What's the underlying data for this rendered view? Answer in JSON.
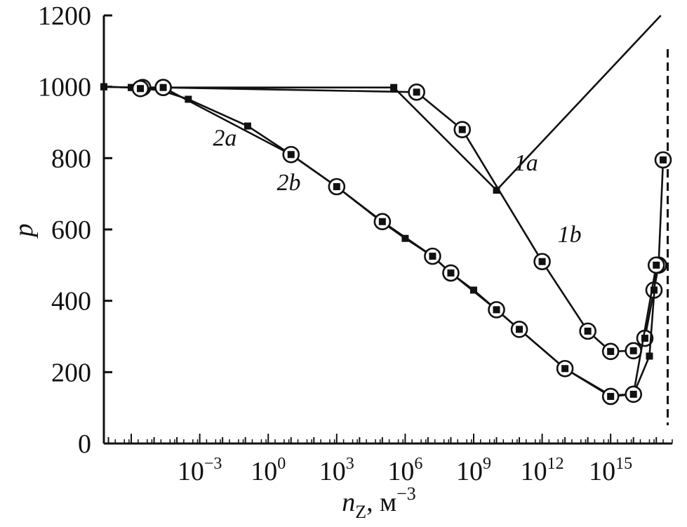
{
  "chart_data": {
    "type": "line",
    "title": "",
    "xlabel": "n",
    "xlabel_sub": "Z",
    "xlabel_unit": ", м",
    "xlabel_unit_exp": "−3",
    "ylabel": "p",
    "xscale": "log",
    "xlim_log10": [
      -7.2,
      17.7
    ],
    "ylim": [
      0,
      1200
    ],
    "yticks": [
      0,
      200,
      400,
      600,
      800,
      1000,
      1200
    ],
    "xticks": [
      {
        "base": "10",
        "exp": "−3",
        "log10": -3
      },
      {
        "base": "10",
        "exp": "0",
        "log10": 0
      },
      {
        "base": "10",
        "exp": "3",
        "log10": 3
      },
      {
        "base": "10",
        "exp": "6",
        "log10": 6
      },
      {
        "base": "10",
        "exp": "9",
        "log10": 9
      },
      {
        "base": "10",
        "exp": "12",
        "log10": 12
      },
      {
        "base": "10",
        "exp": "15",
        "log10": 15
      }
    ],
    "grid": false,
    "asymptote_log10_x": 17.5,
    "series": [
      {
        "name": "1a",
        "marker": "square",
        "log10_x": [
          -7.2,
          -6.0,
          5.5,
          10.0,
          17.2
        ],
        "y": [
          1000,
          998,
          998,
          710,
          1200
        ]
      },
      {
        "name": "1b",
        "marker": "circle-square",
        "log10_x": [
          -5.5,
          -4.6,
          6.5,
          8.5,
          12.0,
          14.0,
          15.0,
          16.0,
          16.5,
          16.9,
          17.1,
          17.3
        ],
        "y": [
          998,
          998,
          985,
          880,
          510,
          315,
          258,
          260,
          295,
          430,
          500,
          795
        ]
      },
      {
        "name": "2a",
        "marker": "square",
        "log10_x": [
          -7.2,
          -6.0,
          -4.7,
          -3.5,
          -0.9,
          1.0,
          3.0,
          5.0,
          6.0,
          7.2,
          8.0,
          9.0,
          10.0,
          11.0,
          13.0,
          15.0,
          16.0,
          16.7,
          17.0
        ],
        "y": [
          1000,
          998,
          990,
          965,
          890,
          810,
          720,
          620,
          575,
          525,
          478,
          430,
          375,
          320,
          210,
          135,
          138,
          245,
          500
        ]
      },
      {
        "name": "2b",
        "marker": "circle-square",
        "log10_x": [
          -5.6,
          -4.6,
          1.0,
          3.0,
          5.0,
          7.2,
          8.0,
          10.0,
          11.0,
          13.0,
          15.0,
          16.0,
          17.0
        ],
        "y": [
          995,
          998,
          810,
          720,
          622,
          525,
          478,
          375,
          320,
          210,
          132,
          138,
          500
        ]
      }
    ],
    "curve_labels": [
      {
        "text": "1a",
        "log10_x": 11.3,
        "y": 765
      },
      {
        "text": "1b",
        "log10_x": 13.2,
        "y": 565
      },
      {
        "text": "2a",
        "log10_x": -1.9,
        "y": 835
      },
      {
        "text": "2b",
        "log10_x": 0.9,
        "y": 710
      }
    ]
  }
}
